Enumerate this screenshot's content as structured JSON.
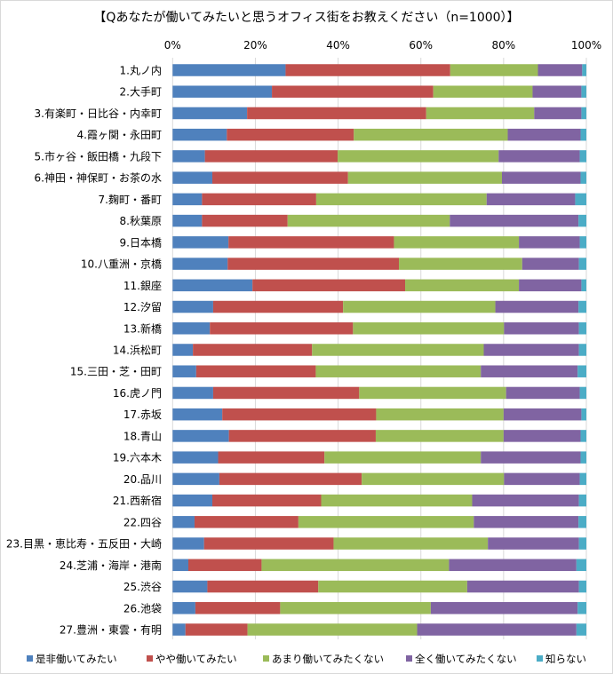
{
  "chart_data": {
    "type": "bar",
    "orientation": "horizontal",
    "stacked": "percent",
    "title": "【Qあなたが働いてみたいと思うオフィス街をお教えください（n=1000）】",
    "xlim": [
      0,
      100
    ],
    "xticks": [
      "0%",
      "20%",
      "40%",
      "60%",
      "80%",
      "100%"
    ],
    "grid": true,
    "legend_position": "bottom",
    "categories": [
      "1.丸ノ内",
      "2.大手町",
      "3.有楽町・日比谷・内幸町",
      "4.霞ヶ関・永田町",
      "5.市ヶ谷・飯田橋・九段下",
      "6.神田・神保町・お茶の水",
      "7.麹町・番町",
      "8.秋葉原",
      "9.日本橋",
      "10.八重洲・京橋",
      "11.銀座",
      "12.汐留",
      "13.新橋",
      "14.浜松町",
      "15.三田・芝・田町",
      "16.虎ノ門",
      "17.赤坂",
      "18.青山",
      "19.六本木",
      "20.品川",
      "21.西新宿",
      "22.四谷",
      "23.目黒・恵比寿・五反田・大崎",
      "24.芝浦・海岸・港南",
      "25.渋谷",
      "26.池袋",
      "27.豊洲・東雲・有明"
    ],
    "series": [
      {
        "name": "是非働いてみたい",
        "color": "#4F81BD",
        "values": [
          27.3,
          24.0,
          18.0,
          13.1,
          7.8,
          9.6,
          7.1,
          7.1,
          13.5,
          13.3,
          19.3,
          9.8,
          9.0,
          4.9,
          5.7,
          9.8,
          12.0,
          13.6,
          11.0,
          11.3,
          9.6,
          5.3,
          7.6,
          3.8,
          8.4,
          5.5,
          3.1
        ]
      },
      {
        "name": "やや働いてみたい",
        "color": "#C0504D",
        "values": [
          39.8,
          39.0,
          43.3,
          30.7,
          32.1,
          32.8,
          27.6,
          20.7,
          40.0,
          41.4,
          36.9,
          31.4,
          34.6,
          28.8,
          28.9,
          35.3,
          37.2,
          35.5,
          25.7,
          34.4,
          26.3,
          25.1,
          31.3,
          17.7,
          26.8,
          20.5,
          15.0
        ]
      },
      {
        "name": "あまり働いてみたくない",
        "color": "#9BBB59",
        "values": [
          21.2,
          24.0,
          26.1,
          37.2,
          38.9,
          37.2,
          41.2,
          39.2,
          30.2,
          29.8,
          27.5,
          36.8,
          36.5,
          41.5,
          39.9,
          35.5,
          30.8,
          30.9,
          37.8,
          34.4,
          36.5,
          42.4,
          37.3,
          45.3,
          36.0,
          36.4,
          41.0
        ]
      },
      {
        "name": "全く働いてみたくない",
        "color": "#8064A2",
        "values": [
          10.7,
          11.8,
          11.4,
          17.6,
          19.6,
          19.0,
          21.4,
          31.1,
          14.7,
          13.7,
          15.1,
          20.1,
          18.1,
          23.0,
          23.4,
          17.8,
          18.8,
          18.6,
          24.1,
          18.3,
          25.8,
          25.3,
          22.0,
          30.8,
          27.0,
          35.5,
          38.5
        ]
      },
      {
        "name": "知らない",
        "color": "#4BACC6",
        "values": [
          1.0,
          1.2,
          1.2,
          1.4,
          1.6,
          1.4,
          2.7,
          1.9,
          1.6,
          1.8,
          1.2,
          1.9,
          1.8,
          1.8,
          2.1,
          1.6,
          1.2,
          1.4,
          1.4,
          1.6,
          1.8,
          1.9,
          1.8,
          2.4,
          1.8,
          2.1,
          2.4
        ]
      }
    ]
  }
}
